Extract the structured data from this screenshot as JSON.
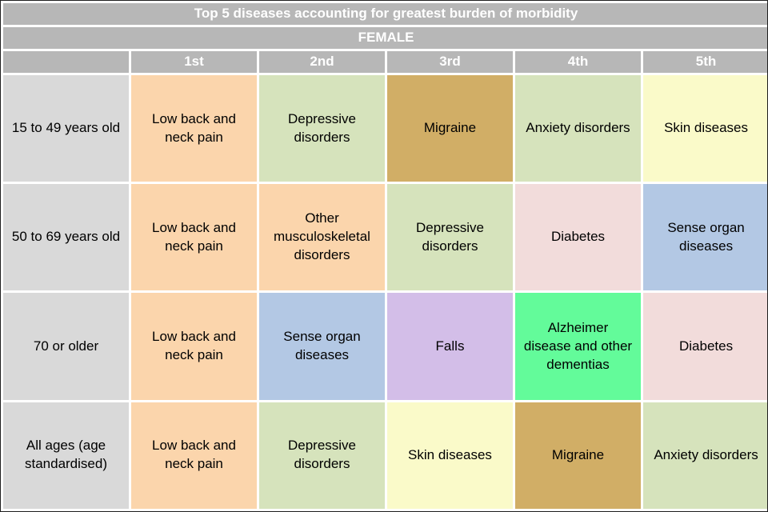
{
  "palette": {
    "header_bg": "#b7b7b7",
    "label_bg": "#d9d9d9",
    "header_text": "#ffffff",
    "cell_text": "#000000",
    "grid": "#ffffff",
    "peach": "#fbd5ac",
    "light_green": "#d6e3bc",
    "tan": "#d1ae66",
    "pale_yellow": "#fafac9",
    "pink": "#f2dcdb",
    "blue": "#b3c8e4",
    "lavender": "#d3bee8",
    "spring_green": "#63fb9a"
  },
  "chart_data": {
    "type": "table",
    "title": "Top 5 diseases accounting for greatest burden of morbidity",
    "subtitle": "FEMALE",
    "corner_label": "",
    "columns": [
      "1st",
      "2nd",
      "3rd",
      "4th",
      "5th"
    ],
    "rows": [
      {
        "label": "15 to 49 years old",
        "cells": [
          {
            "text": "Low back and neck pain",
            "bg": "#fbd5ac"
          },
          {
            "text": "Depressive disorders",
            "bg": "#d6e3bc"
          },
          {
            "text": "Migraine",
            "bg": "#d1ae66"
          },
          {
            "text": "Anxiety disorders",
            "bg": "#d6e3bc"
          },
          {
            "text": "Skin diseases",
            "bg": "#fafac9"
          }
        ]
      },
      {
        "label": "50 to 69 years old",
        "cells": [
          {
            "text": "Low back and neck pain",
            "bg": "#fbd5ac"
          },
          {
            "text": "Other musculoskeletal disorders",
            "bg": "#fbd5ac"
          },
          {
            "text": "Depressive disorders",
            "bg": "#d6e3bc"
          },
          {
            "text": "Diabetes",
            "bg": "#f2dcdb"
          },
          {
            "text": "Sense organ diseases",
            "bg": "#b3c8e4"
          }
        ]
      },
      {
        "label": "70 or older",
        "cells": [
          {
            "text": "Low back and neck pain",
            "bg": "#fbd5ac"
          },
          {
            "text": "Sense organ diseases",
            "bg": "#b3c8e4"
          },
          {
            "text": "Falls",
            "bg": "#d3bee8"
          },
          {
            "text": "Alzheimer disease and other dementias",
            "bg": "#63fb9a"
          },
          {
            "text": "Diabetes",
            "bg": "#f2dcdb"
          }
        ]
      },
      {
        "label": "All ages (age standardised)",
        "cells": [
          {
            "text": "Low back and neck pain",
            "bg": "#fbd5ac"
          },
          {
            "text": "Depressive disorders",
            "bg": "#d6e3bc"
          },
          {
            "text": "Skin diseases",
            "bg": "#fafac9"
          },
          {
            "text": "Migraine",
            "bg": "#d1ae66"
          },
          {
            "text": "Anxiety disorders",
            "bg": "#d6e3bc"
          }
        ]
      }
    ]
  }
}
